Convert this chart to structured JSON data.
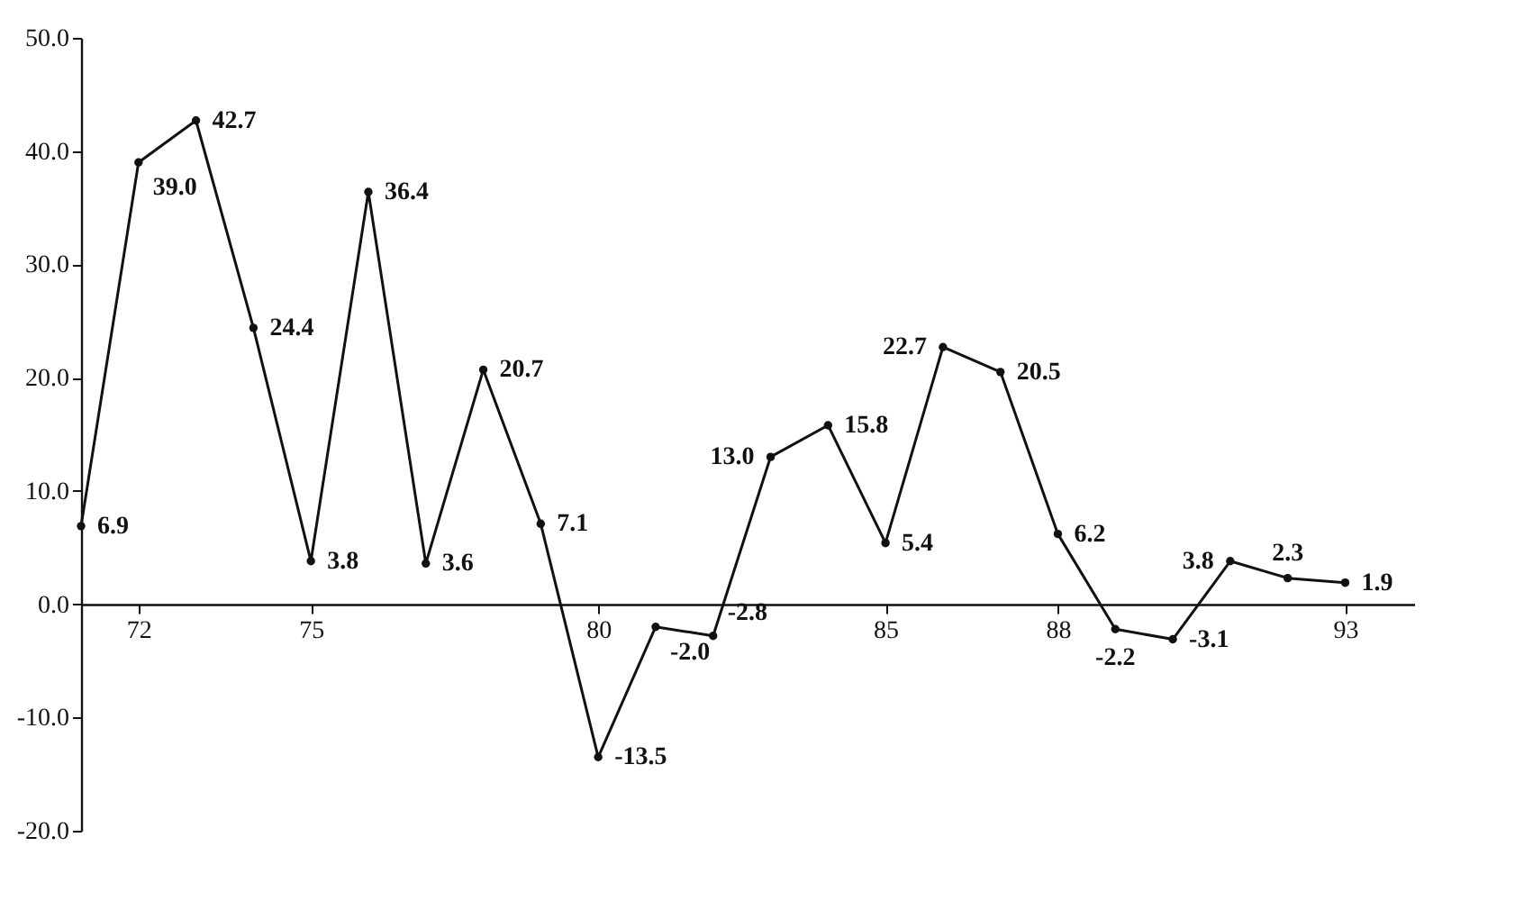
{
  "chart_data": {
    "type": "line",
    "x": [
      71,
      72,
      73,
      74,
      75,
      76,
      77,
      78,
      79,
      80,
      81,
      82,
      83,
      84,
      85,
      86,
      87,
      88,
      89,
      90,
      91,
      92,
      93
    ],
    "series": [
      {
        "color": "#111111",
        "values": [
          6.9,
          39.0,
          42.7,
          24.4,
          3.8,
          36.4,
          3.6,
          20.7,
          7.1,
          -13.5,
          -2.0,
          -2.8,
          13.0,
          15.8,
          5.4,
          22.7,
          20.5,
          6.2,
          -2.2,
          -3.1,
          3.8,
          2.3,
          1.9
        ],
        "value_labels": [
          "6.9",
          "39.0",
          "42.7",
          "24.4",
          "3.8",
          "36.4",
          "3.6",
          "20.7",
          "7.1",
          "-13.5",
          "-2.0",
          "-2.8",
          "13.0",
          "15.8",
          "5.4",
          "22.7",
          "20.5",
          "6.2",
          "-2.2",
          "-3.1",
          "3.8",
          "2.3",
          "1.9"
        ]
      }
    ],
    "xlim": [
      71,
      94.2
    ],
    "xticks": [
      72,
      75,
      80,
      85,
      88,
      93
    ],
    "ylim": [
      -20,
      50
    ],
    "yticks": [
      {
        "value": -20,
        "label": "-20.0"
      },
      {
        "value": -10,
        "label": "-10.0"
      },
      {
        "value": 0,
        "label": "0.0"
      },
      {
        "value": 10,
        "label": "10.0"
      },
      {
        "value": 20,
        "label": "20.0"
      },
      {
        "value": 30,
        "label": "30.0"
      },
      {
        "value": 40,
        "label": "40.0"
      },
      {
        "value": 50,
        "label": "50.0"
      }
    ],
    "grid": false,
    "marker": "circle",
    "line_style": "solid"
  }
}
